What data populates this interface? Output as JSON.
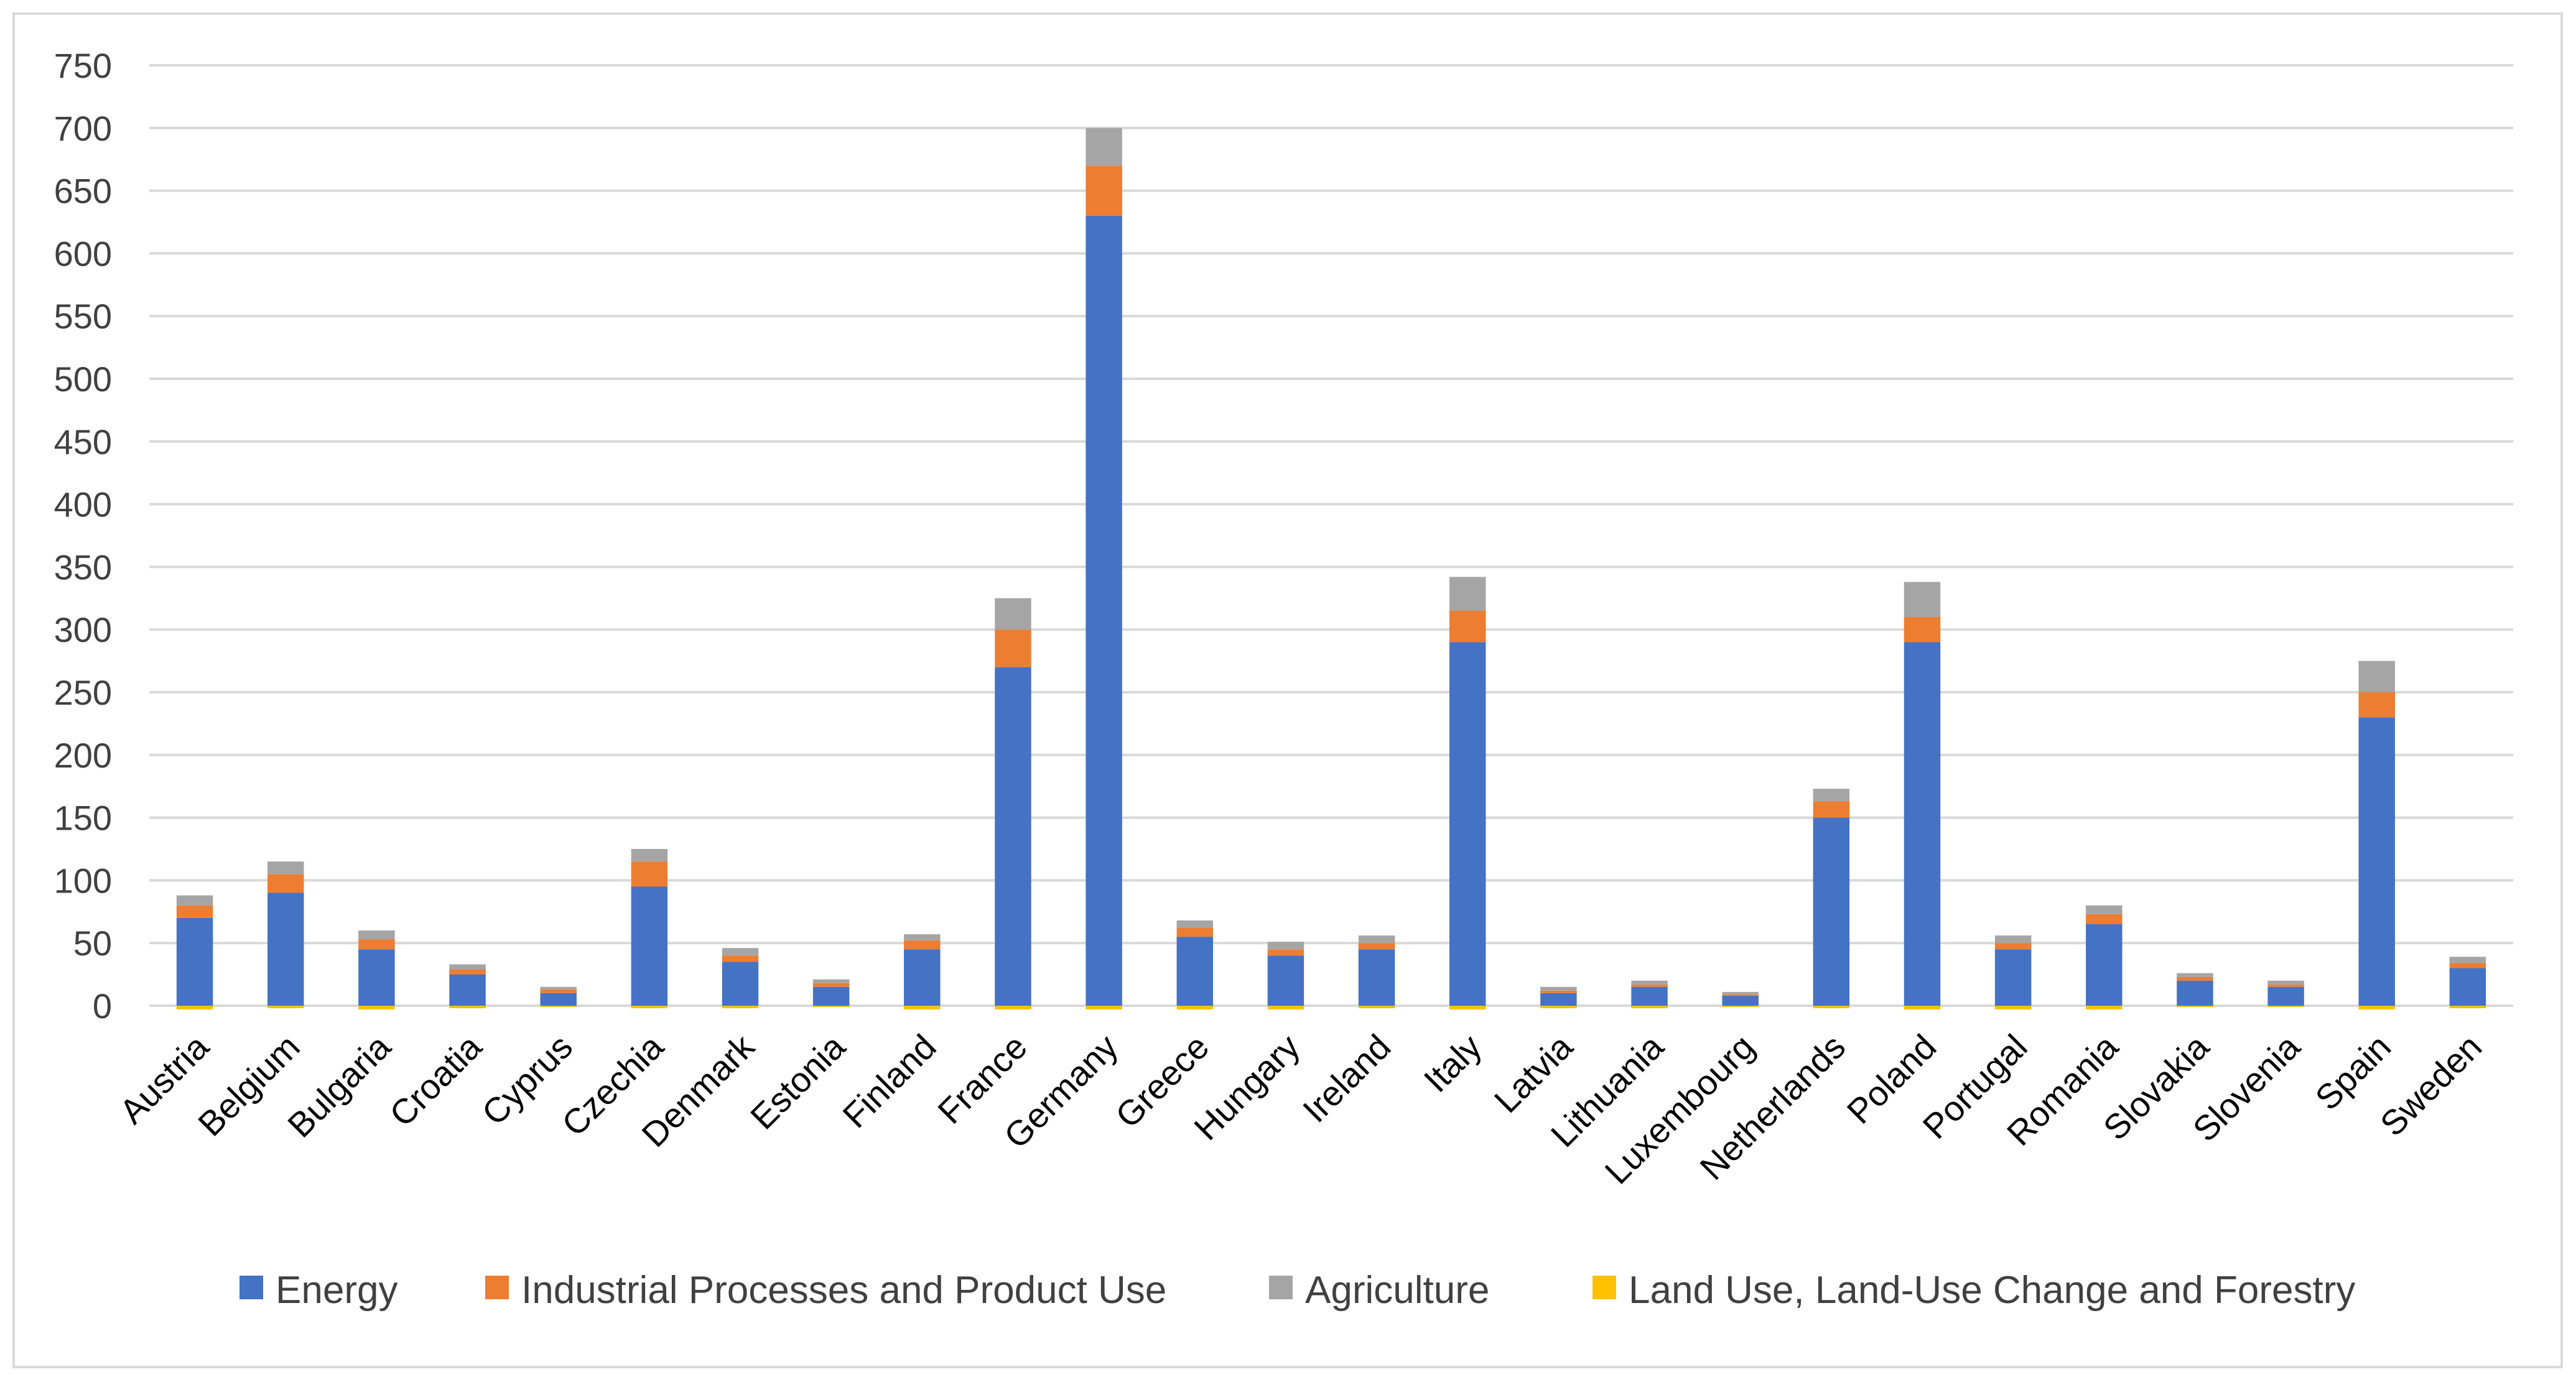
{
  "chart_data": {
    "type": "bar",
    "stacked": true,
    "title": "",
    "xlabel": "",
    "ylabel": "",
    "ylim": [
      0,
      750
    ],
    "yticks": [
      0,
      50,
      100,
      150,
      200,
      250,
      300,
      350,
      400,
      450,
      500,
      550,
      600,
      650,
      700,
      750
    ],
    "grid": true,
    "legend_position": "bottom",
    "categories": [
      "Austria",
      "Belgium",
      "Bulgaria",
      "Croatia",
      "Cyprus",
      "Czechia",
      "Denmark",
      "Estonia",
      "Finland",
      "France",
      "Germany",
      "Greece",
      "Hungary",
      "Ireland",
      "Italy",
      "Latvia",
      "Lithuania",
      "Luxembourg",
      "Netherlands",
      "Poland",
      "Portugal",
      "Romania",
      "Slovakia",
      "Slovenia",
      "Spain",
      "Sweden"
    ],
    "series": [
      {
        "name": "Energy",
        "color": "#4472c4",
        "values": [
          70,
          90,
          45,
          25,
          10,
          95,
          35,
          15,
          45,
          270,
          630,
          55,
          40,
          45,
          290,
          10,
          15,
          8,
          150,
          290,
          45,
          65,
          20,
          15,
          230,
          30
        ]
      },
      {
        "name": "Industrial Processes and Product Use",
        "color": "#ed7d31",
        "values": [
          10,
          15,
          8,
          4,
          3,
          20,
          5,
          3,
          7,
          30,
          40,
          7,
          5,
          5,
          25,
          2,
          2,
          1,
          13,
          20,
          5,
          8,
          3,
          2,
          20,
          4
        ]
      },
      {
        "name": "Agriculture",
        "color": "#a5a5a5",
        "values": [
          8,
          10,
          7,
          4,
          2,
          10,
          6,
          3,
          5,
          25,
          30,
          6,
          6,
          6,
          27,
          3,
          3,
          2,
          10,
          28,
          6,
          7,
          3,
          3,
          25,
          5
        ]
      },
      {
        "name": "Land Use, Land-Use Change and Forestry",
        "color": "#ffc000",
        "values": [
          -3,
          -2,
          -3,
          -2,
          -1,
          -2,
          -2,
          -1,
          -3,
          -3,
          -3,
          -3,
          -3,
          -2,
          -3,
          -2,
          -2,
          -1,
          -2,
          -3,
          -3,
          -3,
          -1,
          -1,
          -3,
          -2
        ]
      }
    ]
  }
}
